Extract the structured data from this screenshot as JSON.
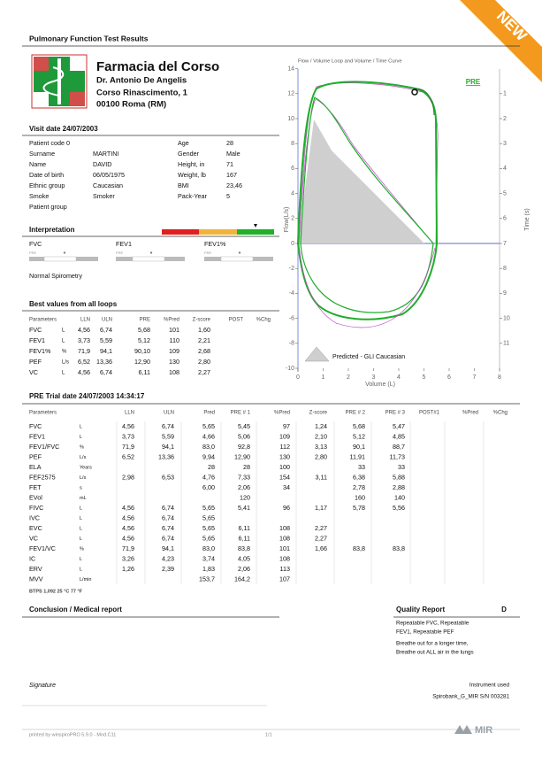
{
  "header": {
    "title": "Pulmonary Function Test Results",
    "badge": "NEW"
  },
  "pharmacy": {
    "name": "Farmacia del Corso",
    "doctor": "Dr. Antonio De Angelis",
    "address1": "Corso Rinascimento, 1",
    "address2": "00100 Roma (RM)"
  },
  "visit": {
    "title": "Visit date 24/07/2003",
    "left": [
      [
        "Patient code 0",
        null
      ],
      [
        "Surname",
        "MARTINI"
      ],
      [
        "Name",
        "DAVID"
      ],
      [
        "Date of birth",
        "06/05/1975"
      ],
      [
        "Ethnic group",
        "Caucasian"
      ],
      [
        "Smoke",
        "Smoker"
      ],
      [
        "Patient group",
        null
      ]
    ],
    "right": [
      [
        "Age",
        "28"
      ],
      [
        "Gender",
        "Male"
      ],
      [
        "Height, in",
        "71"
      ],
      [
        "Weight, lb",
        "167"
      ],
      [
        "BMI",
        "23,46"
      ],
      [
        "Pack-Year",
        "5"
      ]
    ]
  },
  "interpretation": {
    "title": "Interpretation",
    "params": [
      {
        "name": "FVC",
        "tag": "PRE",
        "marker": "*"
      },
      {
        "name": "FEV1",
        "tag": "PRE",
        "marker": "*"
      },
      {
        "name": "FEV1%",
        "tag": "PRE",
        "marker": "*"
      }
    ],
    "result": "Normal Spirometry"
  },
  "best": {
    "title": "Best values from all loops",
    "headers": [
      "Parameters",
      "LLN",
      "ULN",
      "PRE",
      "%Pred",
      "Z-score",
      "POST",
      "%Chg"
    ],
    "rows": [
      [
        "FVC",
        "L",
        "4,56",
        "6,74",
        "5,68",
        "101",
        "1,60"
      ],
      [
        "FEV1",
        "L",
        "3,73",
        "5,59",
        "5,12",
        "110",
        "2,21"
      ],
      [
        "FEV1%",
        "%",
        "71,9",
        "94,1",
        "90,10",
        "109",
        "2,68"
      ],
      [
        "PEF",
        "L/s",
        "6,52",
        "13,36",
        "12,90",
        "130",
        "2,80"
      ],
      [
        "VC",
        "L",
        "4,56",
        "6,74",
        "6,11",
        "108",
        "2,27"
      ]
    ]
  },
  "chart": {
    "title": "Flow / Volume Loop and Volume / Time Curve",
    "tag": "PRE",
    "ylabel": "Flow(L/s)",
    "y2label": "Time (s)",
    "xlabel": "Volume (L)",
    "legend": "Predicted - GLI Caucasian",
    "xlim": [
      0,
      8
    ],
    "xticks": [
      0,
      1,
      2,
      3,
      4,
      5,
      6,
      7,
      8
    ],
    "ylim": [
      -10,
      14
    ],
    "yticks": [
      14,
      12,
      10,
      8,
      6,
      4,
      2,
      0,
      -2,
      -4,
      -6,
      -8,
      -10
    ],
    "y2lim": [
      0,
      12
    ],
    "y2_inverted": true,
    "y2ticks": [
      1,
      2,
      3,
      4,
      5,
      6,
      7,
      8,
      9,
      10,
      11
    ]
  },
  "trial": {
    "title": "PRE Trial date 24/07/2003   14:34:17",
    "headers": [
      "Parameters",
      "LLN",
      "ULN",
      "Pred",
      "PRE # 1",
      "%Pred",
      "Z-score",
      "PRE # 2",
      "PRE # 3",
      "POST#1",
      "%Pred",
      "%Chg"
    ],
    "rows": [
      [
        "FVC",
        "L",
        "4,56",
        "6,74",
        "5,65",
        "5,45",
        "97",
        "1,24",
        "5,68",
        "5,47",
        null,
        null,
        null
      ],
      [
        "FEV1",
        "L",
        "3,73",
        "5,59",
        "4,66",
        "5,06",
        "109",
        "2,10",
        "5,12",
        "4,85",
        null,
        null,
        null
      ],
      [
        "FEV1/FVC",
        "%",
        "71,9",
        "94,1",
        "83,0",
        "92,8",
        "112",
        "3,13",
        "90,1",
        "88,7",
        null,
        null,
        null
      ],
      [
        "PEF",
        "L/s",
        "6,52",
        "13,36",
        "9,94",
        "12,90",
        "130",
        "2,80",
        "11,91",
        "11,73",
        null,
        null,
        null
      ],
      [
        "ELA",
        "Years",
        null,
        null,
        "28",
        "28",
        "100",
        null,
        "33",
        "33",
        null,
        null,
        null
      ],
      [
        "FEF2575",
        "L/s",
        "2,98",
        "6,53",
        "4,76",
        "7,33",
        "154",
        "3,11",
        "6,38",
        "5,88",
        null,
        null,
        null
      ],
      [
        "FET",
        "s",
        null,
        null,
        "6,00",
        "2,06",
        "34",
        null,
        "2,78",
        "2,88",
        null,
        null,
        null
      ],
      [
        "EVol",
        "mL",
        null,
        null,
        null,
        "120",
        null,
        null,
        "160",
        "140",
        null,
        null,
        null
      ],
      [
        "FIVC",
        "L",
        "4,56",
        "6,74",
        "5,65",
        "5,41",
        "96",
        "1,17",
        "5,78",
        "5,56",
        null,
        null,
        null
      ],
      [
        "IVC",
        "L",
        "4,56",
        "6,74",
        "5,65",
        null,
        null,
        null,
        null,
        null,
        null,
        null,
        null
      ],
      [
        "EVC",
        "L",
        "4,56",
        "6,74",
        "5,65",
        "6,11",
        "108",
        "2,27",
        null,
        null,
        null,
        null,
        null
      ],
      [
        "VC",
        "L",
        "4,56",
        "6,74",
        "5,65",
        "6,11",
        "108",
        "2,27",
        null,
        null,
        null,
        null,
        null
      ],
      [
        "FEV1/VC",
        "%",
        "71,9",
        "94,1",
        "83,0",
        "83,8",
        "101",
        "1,66",
        "83,8",
        "83,8",
        null,
        null,
        null
      ],
      [
        "IC",
        "L",
        "3,26",
        "4,23",
        "3,74",
        "4,05",
        "108",
        null,
        null,
        null,
        null,
        null,
        null
      ],
      [
        "ERV",
        "L",
        "1,26",
        "2,39",
        "1,83",
        "2,06",
        "113",
        null,
        null,
        null,
        null,
        null,
        null
      ],
      [
        "MVV",
        "L/min",
        null,
        null,
        "153,7",
        "164,2",
        "107",
        null,
        null,
        null,
        null,
        null,
        null
      ]
    ],
    "footnote": "BTPS 1,092  25 °C  77 °F"
  },
  "conclusion": {
    "title": "Conclusion / Medical report"
  },
  "quality": {
    "title": "Quality Report",
    "grade": "D",
    "lines": [
      "Repeatable FVC, Repeatable",
      "FEV1, Repeatable PEF",
      "Breathe out for a longer time,",
      "Breathe out ALL air in the lungs"
    ]
  },
  "signature": {
    "label": "Signature",
    "instrument_label": "Instrument used",
    "instrument": "Spirobank_G_MIR S/N 003281"
  },
  "footer": {
    "printed": "printed by winspiroPRO 5.9.0 - Mod.C11",
    "page": "1/1",
    "logo": "MIR"
  }
}
